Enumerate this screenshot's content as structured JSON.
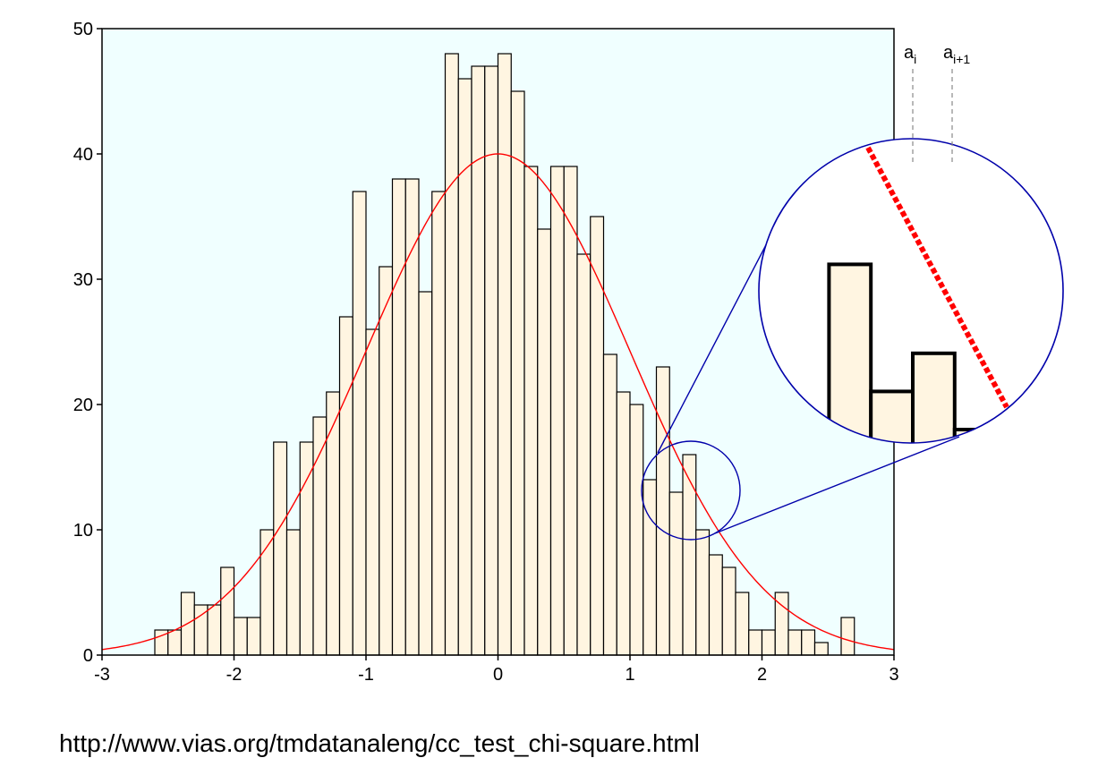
{
  "chart_data": {
    "type": "bar",
    "title": "",
    "xlabel": "",
    "ylabel": "",
    "xlim": [
      -3,
      3
    ],
    "ylim": [
      0,
      50
    ],
    "x_ticks": [
      -3,
      -2,
      -1,
      0,
      1,
      2,
      3
    ],
    "y_ticks": [
      0,
      10,
      20,
      30,
      40,
      50
    ],
    "grid": false,
    "bin_width": 0.1,
    "bins": [
      {
        "x0": -2.6,
        "count": 2
      },
      {
        "x0": -2.5,
        "count": 2
      },
      {
        "x0": -2.4,
        "count": 5
      },
      {
        "x0": -2.3,
        "count": 4
      },
      {
        "x0": -2.2,
        "count": 4
      },
      {
        "x0": -2.1,
        "count": 7
      },
      {
        "x0": -2.0,
        "count": 3
      },
      {
        "x0": -1.9,
        "count": 3
      },
      {
        "x0": -1.8,
        "count": 10
      },
      {
        "x0": -1.7,
        "count": 17
      },
      {
        "x0": -1.6,
        "count": 10
      },
      {
        "x0": -1.5,
        "count": 17
      },
      {
        "x0": -1.4,
        "count": 19
      },
      {
        "x0": -1.3,
        "count": 21
      },
      {
        "x0": -1.2,
        "count": 27
      },
      {
        "x0": -1.1,
        "count": 37
      },
      {
        "x0": -1.0,
        "count": 26
      },
      {
        "x0": -0.9,
        "count": 31
      },
      {
        "x0": -0.8,
        "count": 38
      },
      {
        "x0": -0.7,
        "count": 38
      },
      {
        "x0": -0.6,
        "count": 29
      },
      {
        "x0": -0.5,
        "count": 37
      },
      {
        "x0": -0.4,
        "count": 48
      },
      {
        "x0": -0.3,
        "count": 46
      },
      {
        "x0": -0.2,
        "count": 47
      },
      {
        "x0": -0.1,
        "count": 47
      },
      {
        "x0": 0.0,
        "count": 48
      },
      {
        "x0": 0.1,
        "count": 45
      },
      {
        "x0": 0.2,
        "count": 39
      },
      {
        "x0": 0.3,
        "count": 34
      },
      {
        "x0": 0.4,
        "count": 39
      },
      {
        "x0": 0.5,
        "count": 39
      },
      {
        "x0": 0.6,
        "count": 32
      },
      {
        "x0": 0.7,
        "count": 35
      },
      {
        "x0": 0.8,
        "count": 24
      },
      {
        "x0": 0.9,
        "count": 21
      },
      {
        "x0": 1.0,
        "count": 20
      },
      {
        "x0": 1.1,
        "count": 14
      },
      {
        "x0": 1.2,
        "count": 23
      },
      {
        "x0": 1.3,
        "count": 13
      },
      {
        "x0": 1.4,
        "count": 16
      },
      {
        "x0": 1.5,
        "count": 10
      },
      {
        "x0": 1.6,
        "count": 8
      },
      {
        "x0": 1.7,
        "count": 7
      },
      {
        "x0": 1.8,
        "count": 5
      },
      {
        "x0": 1.9,
        "count": 2
      },
      {
        "x0": 2.0,
        "count": 2
      },
      {
        "x0": 2.1,
        "count": 5
      },
      {
        "x0": 2.2,
        "count": 2
      },
      {
        "x0": 2.3,
        "count": 2
      },
      {
        "x0": 2.4,
        "count": 1
      },
      {
        "x0": 2.6,
        "count": 3
      }
    ],
    "curve": {
      "type": "normal-density",
      "mean": 0,
      "sd": 1,
      "peak": 40,
      "color": "#ff0000"
    },
    "zoom_inset": {
      "source_center": [
        1.45,
        13
      ],
      "labels": [
        "a",
        "a"
      ],
      "subscripts": [
        "i",
        "i+1"
      ],
      "zoom_bins": [
        {
          "x0": 1.2,
          "count": 23
        },
        {
          "x0": 1.3,
          "count": 13
        },
        {
          "x0": 1.4,
          "count": 16
        },
        {
          "x0": 1.5,
          "count": 10
        },
        {
          "x0": 1.6,
          "count": 8
        },
        {
          "x0": 1.7,
          "count": 7
        }
      ],
      "circle_color": "#0000aa"
    },
    "colors": {
      "plot_background": "#f0ffff",
      "bar_fill": "#fff5e1",
      "bar_stroke": "#000000",
      "curve": "#ff0000",
      "zoom_circle": "#0000aa"
    }
  },
  "source_url": "http://www.vias.org/tmdatanaleng/cc_test_chi-square.html"
}
